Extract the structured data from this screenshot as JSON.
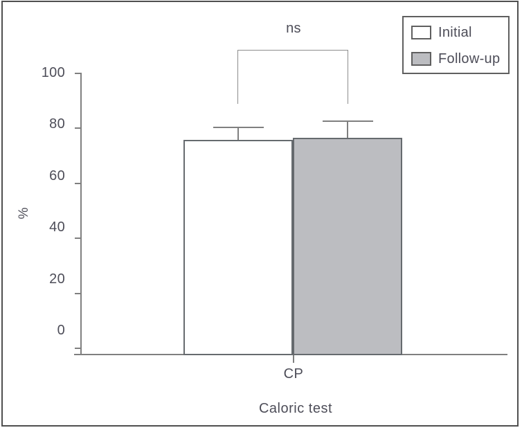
{
  "figure": {
    "significance_label": "ns",
    "x_category": "CP",
    "x_axis_title": "Caloric test",
    "y_axis_title": "%"
  },
  "legend": {
    "items": [
      {
        "label": "Initial",
        "fill": "#ffffff"
      },
      {
        "label": "Follow-up",
        "fill": "#bcbdc1"
      }
    ]
  },
  "chart_data": {
    "type": "bar",
    "title": "",
    "categories": [
      "CP"
    ],
    "series": [
      {
        "name": "Initial",
        "values": [
          75.9
        ],
        "error_plus": [
          4.5
        ],
        "fill": "#ffffff"
      },
      {
        "name": "Follow-up",
        "values": [
          76.6
        ],
        "error_plus": [
          6.0
        ],
        "fill": "#bcbdc1"
      }
    ],
    "xlabel": "Caloric test",
    "ylabel": "%",
    "ylim": [
      0,
      100
    ],
    "y_ticks": [
      0,
      20,
      40,
      60,
      80,
      100
    ],
    "annotations": [
      {
        "text": "ns",
        "type": "significance-bracket",
        "category": "CP",
        "between": [
          "Initial",
          "Follow-up"
        ]
      }
    ],
    "legend_position": "top-right",
    "grid": false
  },
  "colors": {
    "text": "#4d4d58",
    "axis_line": "#7f7f7f",
    "bar_border": "#666a6e",
    "gray_fill": "#bcbdc1",
    "frame_border": "#4f4f4f"
  }
}
